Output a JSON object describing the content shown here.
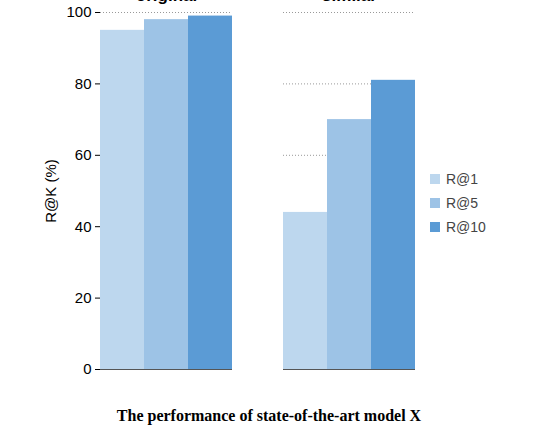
{
  "chart_data": {
    "type": "bar",
    "title": "The performance of state-of-the-art model X",
    "y_label": "R@K (%)",
    "categories": [
      "original",
      "similar"
    ],
    "series": [
      {
        "name": "R@1",
        "color": "#bdd7ee",
        "values": [
          95,
          44
        ]
      },
      {
        "name": "R@5",
        "color": "#9dc3e6",
        "values": [
          98,
          70
        ]
      },
      {
        "name": "R@10",
        "color": "#5b9bd5",
        "values": [
          99,
          81
        ]
      }
    ],
    "ylim": [
      0,
      100
    ],
    "yticks": [
      0,
      20,
      40,
      60,
      80,
      100
    ],
    "grid": true,
    "legend": "right"
  }
}
